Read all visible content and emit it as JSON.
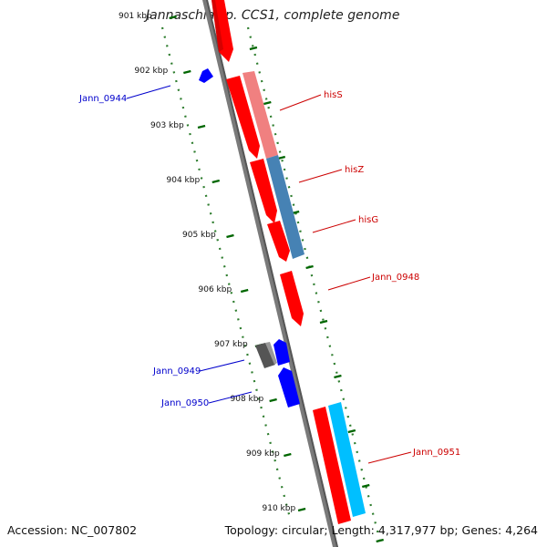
{
  "title": "Jannaschia sp. CCS1, complete genome",
  "footer": {
    "accession": "Accession: NC_007802",
    "topology": "Topology: circular; Length: 4,317,977 bp; Genes: 4,264"
  },
  "ruler": {
    "unit": "kbp",
    "ticks": [
      {
        "label": "901 kbp",
        "kbp": 901
      },
      {
        "label": "902 kbp",
        "kbp": 902
      },
      {
        "label": "903 kbp",
        "kbp": 903
      },
      {
        "label": "904 kbp",
        "kbp": 904
      },
      {
        "label": "905 kbp",
        "kbp": 905
      },
      {
        "label": "906 kbp",
        "kbp": 906
      },
      {
        "label": "907 kbp",
        "kbp": 907
      },
      {
        "label": "908 kbp",
        "kbp": 908
      },
      {
        "label": "909 kbp",
        "kbp": 909
      },
      {
        "label": "910 kbp",
        "kbp": 910
      }
    ]
  },
  "gene_labels": [
    {
      "label": "Jann_0944",
      "color": "#0000cc",
      "side": "left"
    },
    {
      "label": "hisS",
      "color": "#cc0000",
      "side": "right"
    },
    {
      "label": "hisZ",
      "color": "#cc0000",
      "side": "right"
    },
    {
      "label": "hisG",
      "color": "#cc0000",
      "side": "right"
    },
    {
      "label": "Jann_0948",
      "color": "#cc0000",
      "side": "right"
    },
    {
      "label": "Jann_0949",
      "color": "#0000cc",
      "side": "left"
    },
    {
      "label": "Jann_0950",
      "color": "#0000cc",
      "side": "left"
    },
    {
      "label": "Jann_0951",
      "color": "#cc0000",
      "side": "right"
    }
  ],
  "colors": {
    "forward_gene": "#ff0000",
    "reverse_gene": "#0000ff",
    "hisS_feature": "#f08080",
    "hisZ_feature": "#4682b4",
    "Jann_0951_feature": "#00bfff",
    "pseudo_feature": "#555555",
    "backbone": "#777777",
    "tick": "#006600"
  }
}
